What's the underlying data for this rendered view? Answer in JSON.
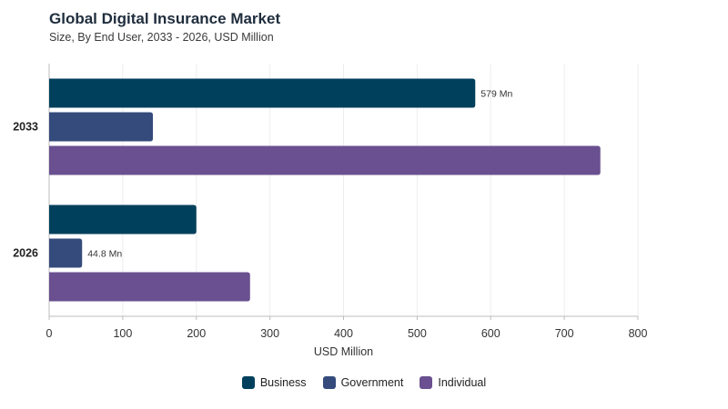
{
  "title": "Global Digital Insurance Market",
  "subtitle": "Size, By End User, 2033 - 2026, USD Million",
  "chart_data": {
    "type": "bar",
    "orientation": "horizontal",
    "title": "Global Digital Insurance Market",
    "subtitle": "Size, By End User, 2033 - 2026, USD Million",
    "xlabel": "USD Million",
    "ylabel": "",
    "categories": [
      "2033",
      "2026"
    ],
    "xlim": [
      0,
      800
    ],
    "xticks": [
      0,
      100,
      200,
      300,
      400,
      500,
      600,
      700,
      800
    ],
    "grid": true,
    "legend_position": "bottom",
    "series": [
      {
        "name": "Business",
        "color": "#00405c",
        "values": [
          579,
          200
        ]
      },
      {
        "name": "Government",
        "color": "#344b7c",
        "values": [
          141,
          44.8
        ]
      },
      {
        "name": "Individual",
        "color": "#6a5090",
        "values": [
          749,
          273
        ]
      }
    ],
    "data_labels": [
      {
        "category": "2033",
        "series": "Business",
        "text": "579 Mn"
      },
      {
        "category": "2026",
        "series": "Government",
        "text": "44.8 Mn"
      }
    ]
  }
}
